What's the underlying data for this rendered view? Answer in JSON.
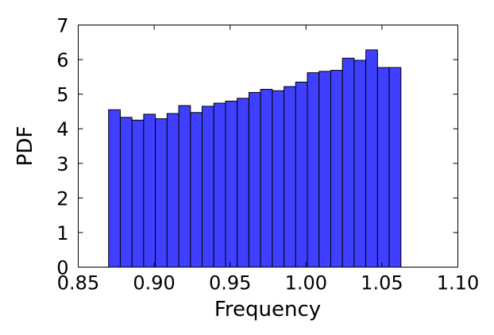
{
  "chart_data": {
    "type": "bar",
    "title": "",
    "xlabel": "Frequency",
    "ylabel": "PDF",
    "xlim": [
      0.85,
      1.1
    ],
    "ylim": [
      0,
      7
    ],
    "xticks": [
      "0.85",
      "0.90",
      "0.95",
      "1.00",
      "1.05",
      "1.10"
    ],
    "yticks": [
      "0",
      "1",
      "2",
      "3",
      "4",
      "5",
      "6",
      "7"
    ],
    "grid": false,
    "bar_color": "#3f3fff",
    "bins": {
      "start": 0.87,
      "width": 0.0077,
      "values": [
        4.55,
        4.33,
        4.25,
        4.42,
        4.29,
        4.44,
        4.67,
        4.47,
        4.65,
        4.74,
        4.8,
        4.88,
        5.05,
        5.14,
        5.1,
        5.22,
        5.35,
        5.62,
        5.66,
        5.69,
        6.04,
        5.98,
        6.28,
        5.77,
        5.77
      ]
    }
  }
}
